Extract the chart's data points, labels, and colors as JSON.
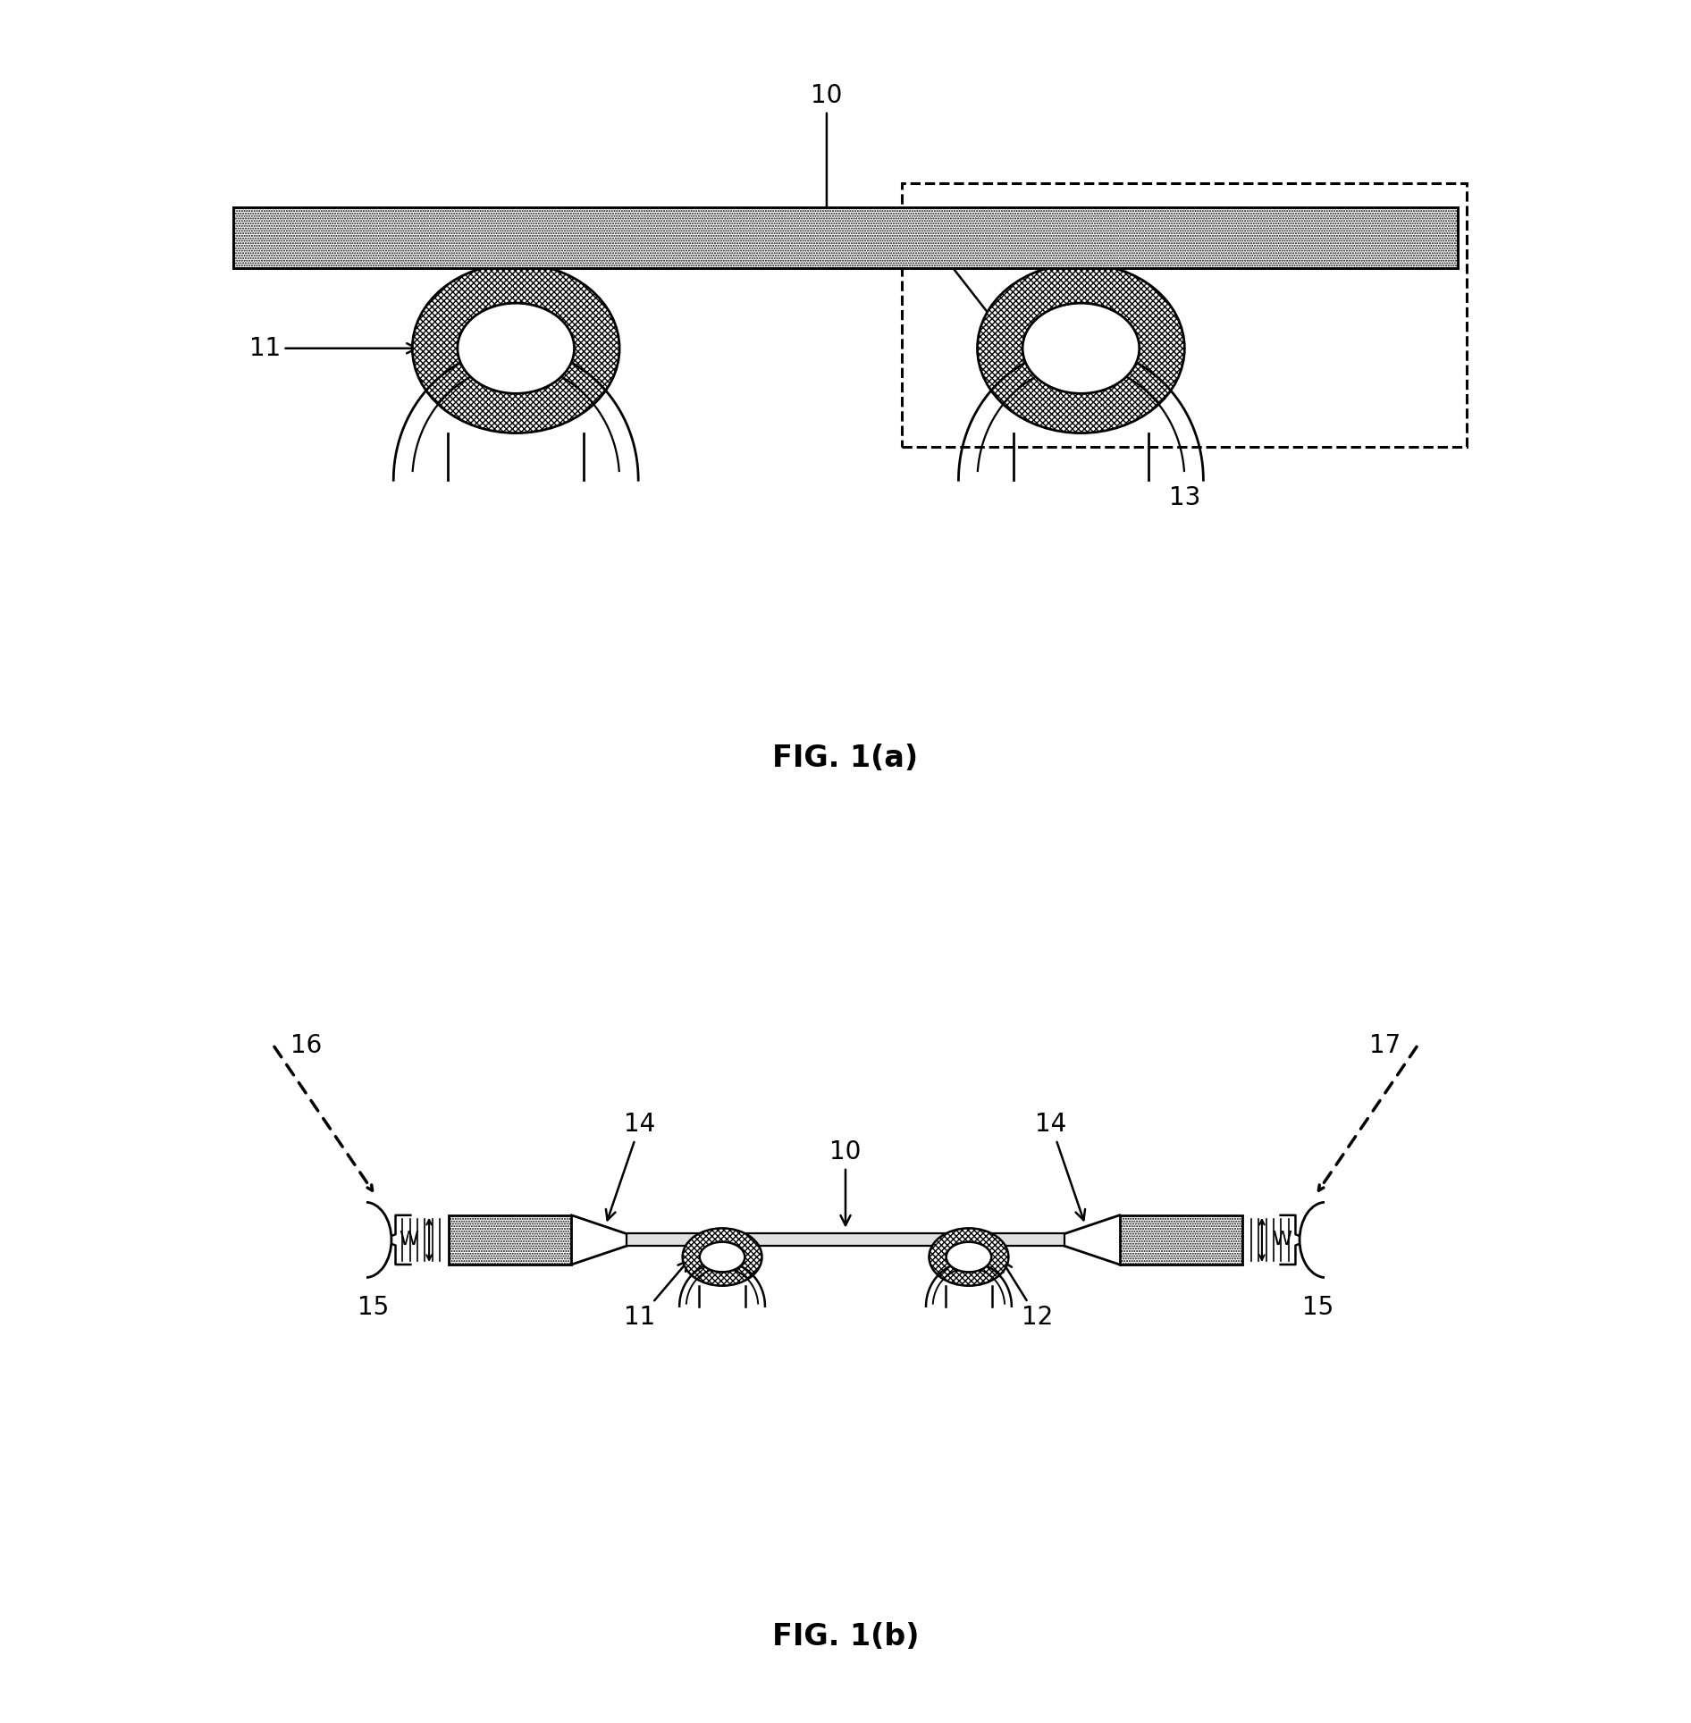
{
  "fig_width": 18.92,
  "fig_height": 19.28,
  "bg_color": "#ffffff",
  "fig1a_label": "FIG. 1(a)",
  "fig1b_label": "FIG. 1(b)",
  "label_fontsize": 20,
  "caption_fontsize": 24
}
